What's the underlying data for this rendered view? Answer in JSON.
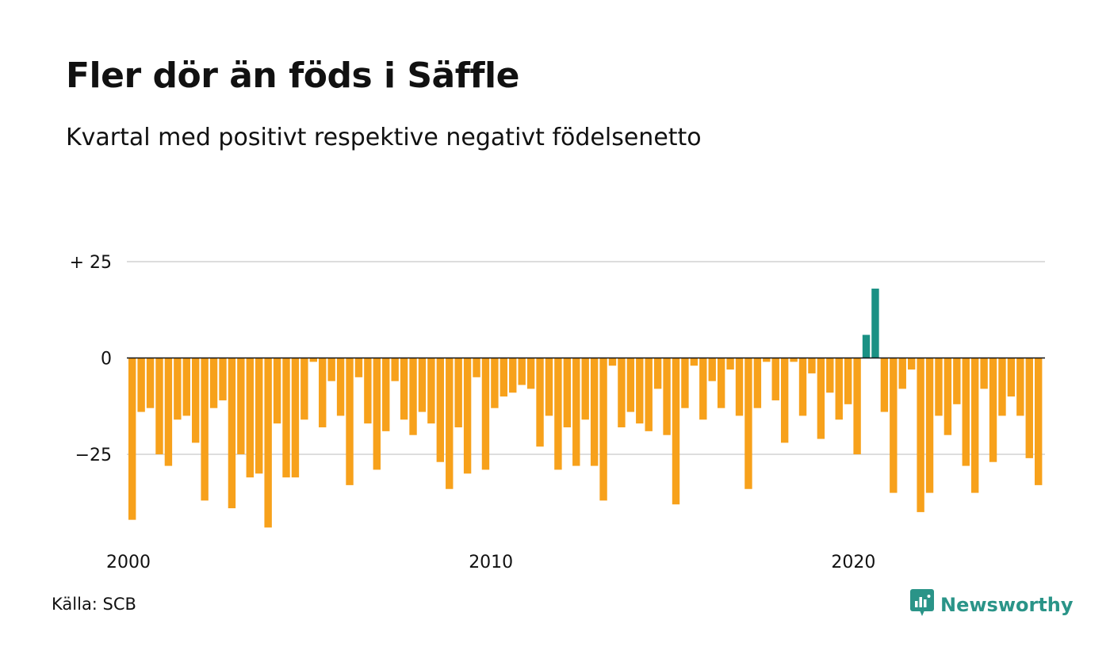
{
  "header": {
    "title": "Fler dör än föds i Säffle",
    "subtitle": "Kvartal med positivt respektive negativt födelsenetto"
  },
  "footer": {
    "source": "Källa: SCB",
    "brand": "Newsworthy",
    "brand_icon": "newsworthy-logo-icon"
  },
  "colors": {
    "negative": "#f7a11b",
    "positive": "#1a9184",
    "grid": "#dddddd",
    "zero_line": "#111111",
    "brand": "#2a9488"
  },
  "chart_data": {
    "type": "bar",
    "x_start_year": 2000,
    "x_quarters_per_year": 4,
    "x_tick_values": [
      2000,
      2010,
      2020
    ],
    "x_tick_labels": [
      "2000",
      "2010",
      "2020"
    ],
    "y_tick_values": [
      25,
      0,
      -25
    ],
    "y_tick_labels": [
      "+ 25",
      "0",
      "−25"
    ],
    "ylim": [
      -47,
      36
    ],
    "grid": true,
    "values": [
      -42,
      -14,
      -13,
      -25,
      -28,
      -16,
      -15,
      -22,
      -37,
      -13,
      -11,
      -39,
      -25,
      -31,
      -30,
      -44,
      -17,
      -31,
      -31,
      -16,
      -1,
      -18,
      -6,
      -15,
      -33,
      -5,
      -17,
      -29,
      -19,
      -6,
      -16,
      -20,
      -14,
      -17,
      -27,
      -34,
      -18,
      -30,
      -5,
      -29,
      -13,
      -10,
      -9,
      -7,
      -8,
      -23,
      -15,
      -29,
      -18,
      -28,
      -16,
      -28,
      -37,
      -2,
      -18,
      -14,
      -17,
      -19,
      -8,
      -20,
      -38,
      -13,
      -2,
      -16,
      -6,
      -13,
      -3,
      -15,
      -34,
      -13,
      -1,
      -11,
      -22,
      -1,
      -15,
      -4,
      -21,
      -9,
      -16,
      -12,
      -25,
      6,
      18,
      -14,
      -35,
      -8,
      -3,
      -40,
      -35,
      -15,
      -20,
      -12,
      -28,
      -35,
      -8,
      -27,
      -15,
      -10,
      -15,
      -26,
      -33
    ]
  }
}
